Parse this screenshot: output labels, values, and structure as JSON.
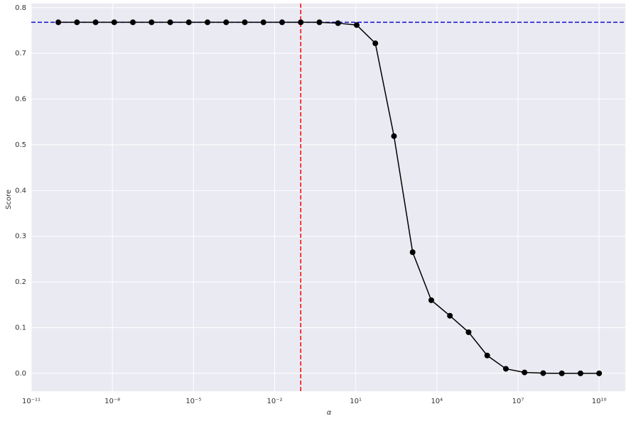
{
  "chart_data": {
    "type": "line",
    "xlabel": "α",
    "ylabel": "Score",
    "x": [
      1e-10,
      4.894e-10,
      2.395e-09,
      1.172e-08,
      5.736e-08,
      2.807e-07,
      1.374e-06,
      6.723e-06,
      3.29e-05,
      0.000161,
      0.000788,
      0.003857,
      0.01887,
      0.09237,
      0.452,
      2.212,
      10.83,
      52.98,
      259.3,
      1269,
      6210,
      30392,
      148735,
      727895,
      3562248,
      17433288,
      85316785,
      417531894,
      2043359718,
      10000000000.0
    ],
    "values": [
      0.768,
      0.768,
      0.768,
      0.768,
      0.768,
      0.768,
      0.768,
      0.768,
      0.768,
      0.768,
      0.768,
      0.768,
      0.768,
      0.768,
      0.768,
      0.766,
      0.762,
      0.722,
      0.519,
      0.265,
      0.16,
      0.126,
      0.09,
      0.039,
      0.01,
      0.002,
      0.0005,
      0,
      0,
      0
    ],
    "color": "#000000",
    "xscale": "log",
    "xlim": [
      1e-11,
      93000000000.0
    ],
    "ylim": [
      -0.039,
      0.809
    ],
    "xticks": [
      {
        "value": 1e-11,
        "label": "10⁻¹¹"
      },
      {
        "value": 1e-08,
        "label": "10⁻⁸"
      },
      {
        "value": 1e-05,
        "label": "10⁻⁵"
      },
      {
        "value": 0.01,
        "label": "10⁻²"
      },
      {
        "value": 10,
        "label": "10¹"
      },
      {
        "value": 10000,
        "label": "10⁴"
      },
      {
        "value": 10000000,
        "label": "10⁷"
      },
      {
        "value": 10000000000,
        "label": "10¹⁰"
      }
    ],
    "yticks": [
      {
        "value": 0,
        "label": "0.0"
      },
      0.1,
      0.2,
      0.3,
      0.4,
      0.5,
      0.6,
      0.7,
      0.8
    ],
    "grid": true,
    "hlines": [
      {
        "value": 0.768,
        "color": "#1010c8"
      }
    ],
    "vlines": [
      {
        "value": 0.0924,
        "color": "#ff0000"
      }
    ]
  }
}
